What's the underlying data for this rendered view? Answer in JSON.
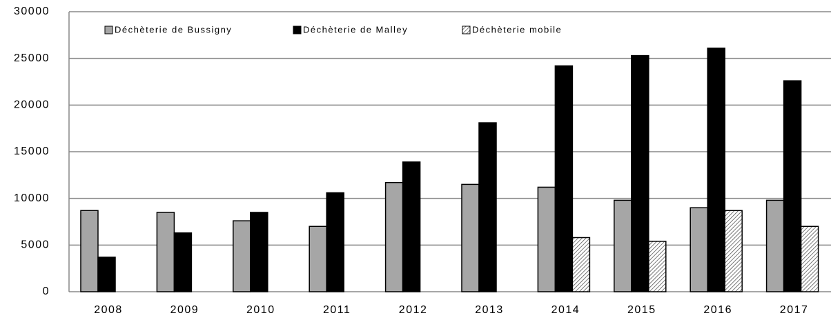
{
  "chart_data": {
    "type": "bar",
    "categories": [
      "2008",
      "2009",
      "2010",
      "2011",
      "2012",
      "2013",
      "2014",
      "2015",
      "2016",
      "2017"
    ],
    "series": [
      {
        "name": "Déchèterie de Bussigny",
        "color": "#a6a6a6",
        "values": [
          8700,
          8500,
          7600,
          7000,
          11700,
          11500,
          11200,
          9800,
          9000,
          9800
        ]
      },
      {
        "name": "Déchèterie de Malley",
        "color": "#000000",
        "values": [
          3700,
          6300,
          8500,
          10600,
          13900,
          18100,
          24200,
          25300,
          26100,
          22600
        ]
      },
      {
        "name": "Déchèterie mobile",
        "color": "hatch",
        "values": [
          null,
          null,
          null,
          null,
          null,
          null,
          5800,
          5400,
          8700,
          7000
        ]
      }
    ],
    "ylim": [
      0,
      30000
    ],
    "yticks": [
      0,
      5000,
      10000,
      15000,
      20000,
      25000,
      30000
    ],
    "grid": true,
    "legend": "top"
  }
}
